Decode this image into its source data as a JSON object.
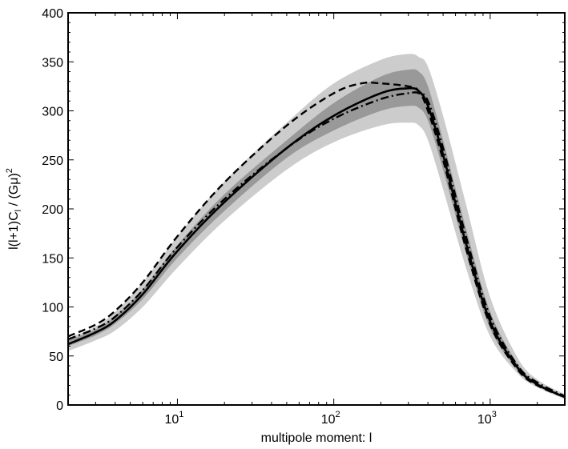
{
  "chart_data": {
    "type": "area",
    "title": "",
    "xlabel": "multipole moment: l",
    "ylabel": "l(l+1)C",
    "ylabel_sub": "l",
    "ylabel_tail": " / (Gμ)",
    "ylabel_sup": "2",
    "xscale": "log",
    "xlim": [
      2,
      3000
    ],
    "ylim": [
      0,
      400
    ],
    "grid": false,
    "legend": "none",
    "x_major_ticks": [
      {
        "value": 10,
        "base": "10",
        "exp": "1"
      },
      {
        "value": 100,
        "base": "10",
        "exp": "2"
      },
      {
        "value": 1000,
        "base": "10",
        "exp": "3"
      }
    ],
    "y_ticks": [
      0,
      50,
      100,
      150,
      200,
      250,
      300,
      350,
      400
    ],
    "colors": {
      "outer_band": "#cccccc",
      "inner_band": "#999999",
      "line": "#000000"
    },
    "bands": [
      {
        "role": "outer",
        "x": [
          2,
          3,
          4,
          6,
          10,
          20,
          50,
          100,
          200,
          300,
          350,
          400,
          500,
          700,
          1000,
          1500,
          2000,
          3000
        ],
        "lower": [
          55,
          66,
          76,
          100,
          140,
          188,
          240,
          268,
          285,
          288,
          285,
          270,
          220,
          140,
          70,
          32,
          18,
          6
        ],
        "upper": [
          68,
          80,
          95,
          125,
          172,
          228,
          288,
          328,
          352,
          358,
          355,
          345,
          295,
          205,
          110,
          48,
          26,
          11
        ]
      },
      {
        "role": "inner",
        "x": [
          2,
          3,
          4,
          6,
          10,
          20,
          50,
          100,
          200,
          300,
          350,
          400,
          500,
          700,
          1000,
          1500,
          2000,
          3000
        ],
        "lower": [
          60,
          71,
          83,
          108,
          150,
          198,
          252,
          280,
          300,
          305,
          303,
          290,
          240,
          155,
          78,
          35,
          20,
          7
        ],
        "upper": [
          66,
          77,
          91,
          118,
          163,
          215,
          270,
          308,
          335,
          342,
          340,
          325,
          270,
          180,
          95,
          42,
          23,
          9
        ]
      }
    ],
    "series": [
      {
        "style": "solid",
        "x": [
          2,
          3,
          4,
          6,
          10,
          20,
          50,
          100,
          200,
          300,
          350,
          400,
          500,
          700,
          1000,
          1500,
          2000,
          3000
        ],
        "y": [
          62,
          74,
          86,
          113,
          157,
          207,
          262,
          295,
          318,
          323,
          320,
          305,
          255,
          165,
          85,
          38,
          21,
          8
        ]
      },
      {
        "style": "dashed",
        "x": [
          2,
          3,
          4,
          6,
          10,
          20,
          50,
          100,
          150,
          200,
          300,
          350,
          400,
          500,
          700,
          1000,
          1500,
          2000,
          3000
        ],
        "y": [
          70,
          82,
          96,
          125,
          172,
          227,
          285,
          318,
          328,
          328,
          325,
          320,
          300,
          250,
          160,
          82,
          36,
          20,
          8
        ]
      },
      {
        "style": "dashdot",
        "x": [
          2,
          3,
          4,
          6,
          10,
          20,
          50,
          100,
          200,
          300,
          350,
          400,
          500,
          700,
          1000,
          1500,
          2000,
          3000
        ],
        "y": [
          67,
          78,
          90,
          117,
          161,
          210,
          262,
          292,
          312,
          318,
          318,
          310,
          262,
          172,
          90,
          40,
          23,
          9
        ]
      }
    ]
  }
}
